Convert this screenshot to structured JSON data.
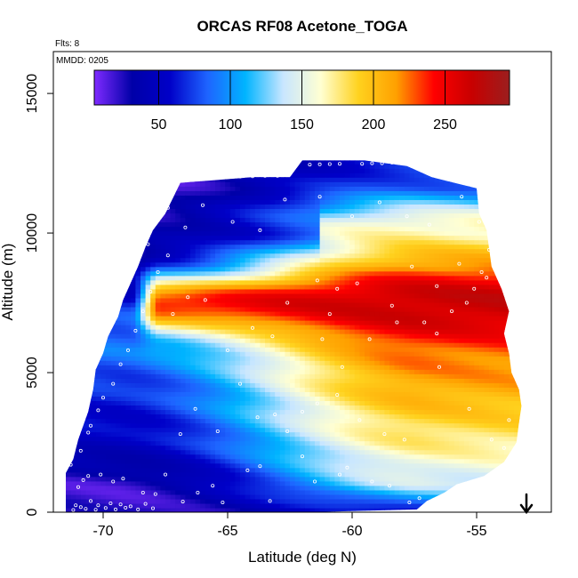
{
  "chart_data": {
    "type": "heatmap",
    "title": "ORCAS RF08 Acetone_TOGA",
    "xlabel": "Latitude (deg N)",
    "ylabel": "Altitude (m)",
    "xlim": [
      -72.0,
      -52.0
    ],
    "ylim": [
      0,
      16500
    ],
    "x_ticks": [
      -70,
      -65,
      -60,
      -55
    ],
    "x_tick_labels": [
      "-70",
      "-65",
      "-60",
      "-55"
    ],
    "y_ticks": [
      0,
      5000,
      10000,
      15000
    ],
    "y_tick_labels": [
      "0",
      "5000",
      "10000",
      "15000"
    ],
    "flights_label": "Flts: 8",
    "date_label": "MMDD: 0205",
    "colorbar": {
      "range": [
        5,
        295
      ],
      "ticks": [
        50,
        100,
        150,
        200,
        250
      ],
      "tick_labels": [
        "50",
        "100",
        "150",
        "200",
        "250"
      ],
      "colors": [
        "#7f2bff",
        "#0000a8",
        "#0000c8",
        "#1e64ff",
        "#00b4ff",
        "#c8e6ff",
        "#ffffd2",
        "#ffd21e",
        "#ffa000",
        "#ff0000",
        "#c80000",
        "#9b1e1e"
      ]
    },
    "outline": {
      "lat": [
        -71.5,
        -71.5,
        -71.2,
        -71.0,
        -70.6,
        -70.4,
        -70.3,
        -70.0,
        -69.8,
        -69.4,
        -69.2,
        -68.9,
        -68.6,
        -68.3,
        -68.0,
        -67.5,
        -66.9,
        -64.0,
        -62.5,
        -62.0,
        -59.5,
        -57.8,
        -56.8,
        -55.0,
        -54.9,
        -54.6,
        -54.4,
        -54.0,
        -53.7,
        -53.9,
        -53.7,
        -53.6,
        -53.3,
        -53.2,
        -53.3,
        -53.4,
        -53.9,
        -54.7,
        -55.8,
        -56.3,
        -57.0,
        -57.4,
        -61.8,
        -62.0,
        -71.5
      ],
      "alt": [
        0,
        1400,
        1900,
        2600,
        3600,
        4400,
        5100,
        5700,
        6300,
        7000,
        7600,
        8200,
        8800,
        9500,
        10100,
        10700,
        11800,
        12000,
        12000,
        12600,
        12600,
        12400,
        12000,
        11600,
        10700,
        10100,
        8800,
        8000,
        7200,
        6400,
        5700,
        5000,
        4400,
        3800,
        3200,
        2500,
        1800,
        1300,
        1000,
        700,
        400,
        100,
        0,
        0,
        0
      ]
    },
    "grid": {
      "lat_min": -71.5,
      "lat_max": -53.0,
      "lat_step": 0.2,
      "alt_max": 12600,
      "alt_step": 160
    },
    "field": {
      "alt_levels": [
        0,
        1000,
        2500,
        4500,
        5800,
        7000,
        7700,
        8800,
        10200,
        11600,
        12600
      ],
      "southern_values": [
        20,
        20,
        50,
        70,
        90,
        80,
        55,
        35,
        18,
        12,
        10
      ],
      "northern_values": [
        60,
        140,
        175,
        210,
        225,
        255,
        260,
        210,
        180,
        85,
        65
      ]
    },
    "shear_band": {
      "alt_center": 7500,
      "alt_half_width": 1000,
      "lat_south_edge": -68.3,
      "lat_north_edge": -54.2,
      "value": 270,
      "south_weight": 0.8,
      "plume_weight": 0.85
    },
    "upper_jump": {
      "alt_center": 10100,
      "alt_half_width": 600,
      "lat_edge": -61.2,
      "value_south": 40,
      "value_north": 160
    },
    "sample_points": [
      [
        -71.2,
        80
      ],
      [
        -71.1,
        250
      ],
      [
        -70.9,
        180
      ],
      [
        -70.7,
        120
      ],
      [
        -70.5,
        400
      ],
      [
        -70.3,
        90
      ],
      [
        -70.2,
        250
      ],
      [
        -69.9,
        150
      ],
      [
        -69.7,
        320
      ],
      [
        -69.5,
        100
      ],
      [
        -69.3,
        280
      ],
      [
        -69.1,
        160
      ],
      [
        -68.9,
        210
      ],
      [
        -68.6,
        100
      ],
      [
        -68.3,
        300
      ],
      [
        -68.0,
        140
      ],
      [
        -71.0,
        900
      ],
      [
        -70.8,
        1150
      ],
      [
        -70.6,
        1300
      ],
      [
        -70.1,
        1350
      ],
      [
        -69.6,
        1100
      ],
      [
        -69.2,
        1200
      ],
      [
        -68.4,
        700
      ],
      [
        -67.9,
        650
      ],
      [
        -67.5,
        1350
      ],
      [
        -66.8,
        380
      ],
      [
        -66.2,
        700
      ],
      [
        -65.6,
        950
      ],
      [
        -65.2,
        350
      ],
      [
        -64.2,
        1500
      ],
      [
        -63.7,
        1650
      ],
      [
        -63.3,
        400
      ],
      [
        -62.0,
        2000
      ],
      [
        -61.5,
        1100
      ],
      [
        -60.5,
        1350
      ],
      [
        -60.2,
        1600
      ],
      [
        -59.2,
        1100
      ],
      [
        -58.5,
        950
      ],
      [
        -57.7,
        350
      ],
      [
        -57.3,
        500
      ],
      [
        -71.3,
        1700
      ],
      [
        -70.9,
        2200
      ],
      [
        -70.6,
        2850
      ],
      [
        -70.5,
        3100
      ],
      [
        -70.2,
        3650
      ],
      [
        -70.0,
        4100
      ],
      [
        -69.6,
        4600
      ],
      [
        -69.3,
        5300
      ],
      [
        -69.0,
        5800
      ],
      [
        -68.7,
        6500
      ],
      [
        -68.4,
        7200
      ],
      [
        -68.1,
        7900
      ],
      [
        -67.8,
        8600
      ],
      [
        -67.4,
        9200
      ],
      [
        -66.9,
        2800
      ],
      [
        -66.3,
        3700
      ],
      [
        -65.4,
        2900
      ],
      [
        -64.5,
        4600
      ],
      [
        -63.8,
        3400
      ],
      [
        -63.1,
        3500
      ],
      [
        -62.6,
        2900
      ],
      [
        -62.0,
        3600
      ],
      [
        -61.4,
        3900
      ],
      [
        -60.6,
        4200
      ],
      [
        -59.7,
        3300
      ],
      [
        -58.7,
        2800
      ],
      [
        -57.9,
        2600
      ],
      [
        -56.5,
        5200
      ],
      [
        -55.3,
        3700
      ],
      [
        -54.4,
        2600
      ],
      [
        -53.9,
        2300
      ],
      [
        -53.7,
        3300
      ],
      [
        -67.2,
        7100
      ],
      [
        -66.6,
        7700
      ],
      [
        -65.9,
        7600
      ],
      [
        -65.0,
        5800
      ],
      [
        -64.0,
        6600
      ],
      [
        -63.2,
        6300
      ],
      [
        -62.6,
        7500
      ],
      [
        -61.2,
        6200
      ],
      [
        -60.9,
        7100
      ],
      [
        -60.4,
        5200
      ],
      [
        -59.3,
        6200
      ],
      [
        -58.2,
        6800
      ],
      [
        -57.1,
        6800
      ],
      [
        -56.6,
        6400
      ],
      [
        -56.0,
        7200
      ],
      [
        -55.4,
        7500
      ],
      [
        -55.1,
        8000
      ],
      [
        -54.6,
        8400
      ],
      [
        -54.3,
        9100
      ],
      [
        -53.8,
        8000
      ],
      [
        -53.6,
        6600
      ],
      [
        -61.4,
        8300
      ],
      [
        -60.6,
        8000
      ],
      [
        -59.8,
        8200
      ],
      [
        -58.4,
        7400
      ],
      [
        -57.6,
        8800
      ],
      [
        -56.6,
        8100
      ],
      [
        -55.7,
        8900
      ],
      [
        -54.8,
        8600
      ],
      [
        -54.5,
        9400
      ],
      [
        -54.2,
        9700
      ],
      [
        -67.5,
        11700
      ],
      [
        -67.0,
        11950
      ],
      [
        -66.5,
        11990
      ],
      [
        -66.0,
        12000
      ],
      [
        -65.5,
        12010
      ],
      [
        -65.0,
        12010
      ],
      [
        -64.5,
        12020
      ],
      [
        -64.0,
        12030
      ],
      [
        -63.5,
        12050
      ],
      [
        -63.0,
        12050
      ],
      [
        -61.7,
        12450
      ],
      [
        -61.3,
        12460
      ],
      [
        -60.9,
        12470
      ],
      [
        -60.5,
        12480
      ],
      [
        -59.6,
        12480
      ],
      [
        -59.2,
        12500
      ],
      [
        -58.8,
        12500
      ],
      [
        -58.4,
        12520
      ],
      [
        -58.0,
        12530
      ],
      [
        -57.6,
        12540
      ],
      [
        -57.2,
        12540
      ],
      [
        -56.8,
        12540
      ],
      [
        -56.4,
        12500
      ],
      [
        -66.0,
        11000
      ],
      [
        -64.8,
        10400
      ],
      [
        -63.7,
        10100
      ],
      [
        -62.7,
        11200
      ],
      [
        -61.3,
        11300
      ],
      [
        -60.0,
        10600
      ],
      [
        -58.9,
        11100
      ],
      [
        -57.8,
        10600
      ],
      [
        -56.9,
        10300
      ],
      [
        -55.6,
        11300
      ],
      [
        -54.9,
        10400
      ],
      [
        -67.4,
        10900
      ],
      [
        -66.7,
        10200
      ],
      [
        -68.2,
        9600
      ]
    ]
  }
}
